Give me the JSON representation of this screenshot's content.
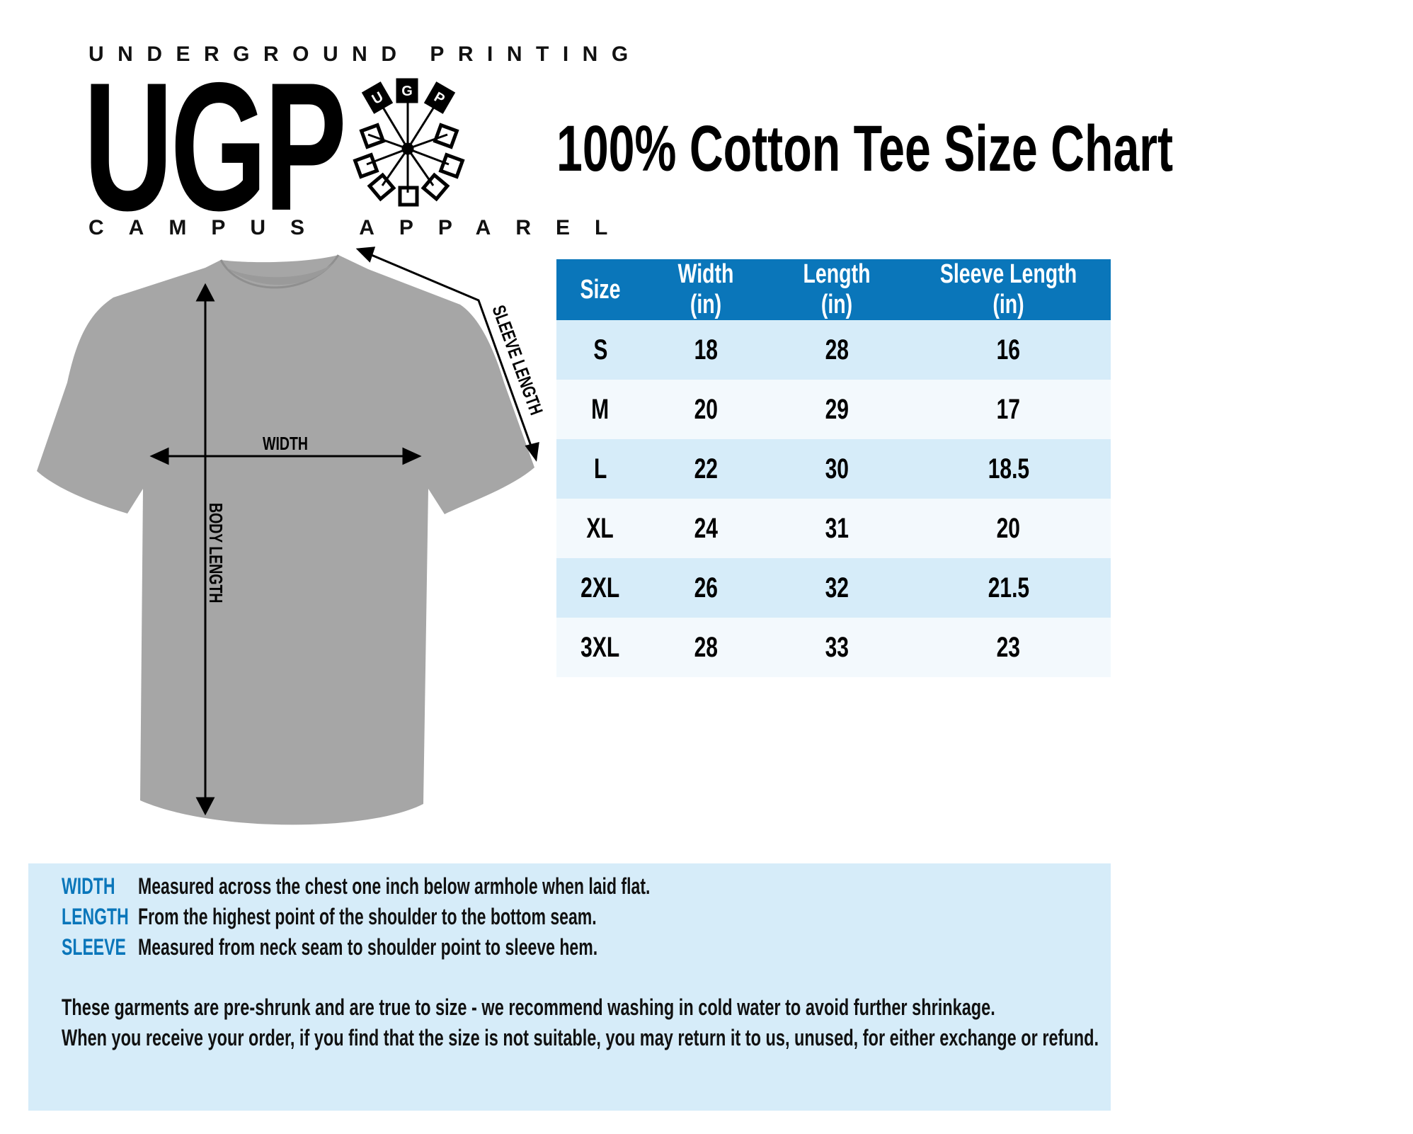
{
  "logo": {
    "top_text": "UNDERGROUND PRINTING",
    "main_text": "UGP",
    "bottom_text": "CAMPUS APPAREL",
    "emblem_letters": [
      "U",
      "G",
      "P"
    ]
  },
  "title": "100% Cotton Tee Size Chart",
  "diagram": {
    "width_label": "WIDTH",
    "body_length_label": "BODY LENGTH",
    "sleeve_length_label": "SLEEVE LENGTH",
    "shirt_color": "#a6a6a6"
  },
  "table": {
    "headers": [
      "Size",
      "Width (in)",
      "Length (in)",
      "Sleeve Length (in)"
    ],
    "rows": [
      [
        "S",
        "18",
        "28",
        "16"
      ],
      [
        "M",
        "20",
        "29",
        "17"
      ],
      [
        "L",
        "22",
        "30",
        "18.5"
      ],
      [
        "XL",
        "24",
        "31",
        "20"
      ],
      [
        "2XL",
        "26",
        "32",
        "21.5"
      ],
      [
        "3XL",
        "28",
        "33",
        "23"
      ]
    ],
    "header_color": "#0a76ba"
  },
  "notes": {
    "definitions": [
      {
        "term": "WIDTH",
        "text": "Measured across the chest one inch below armhole when laid flat."
      },
      {
        "term": "LENGTH",
        "text": "From the highest point of the shoulder to the bottom seam."
      },
      {
        "term": "SLEEVE",
        "text": "Measured from neck seam to shoulder point to sleeve hem."
      }
    ],
    "paragraph_1": "These garments are pre-shrunk and are true to size - we recommend washing in cold water to avoid further shrinkage.",
    "paragraph_2": "When you receive your order, if you find that the size is not suitable, you may return it to us, unused, for either exchange or refund."
  }
}
